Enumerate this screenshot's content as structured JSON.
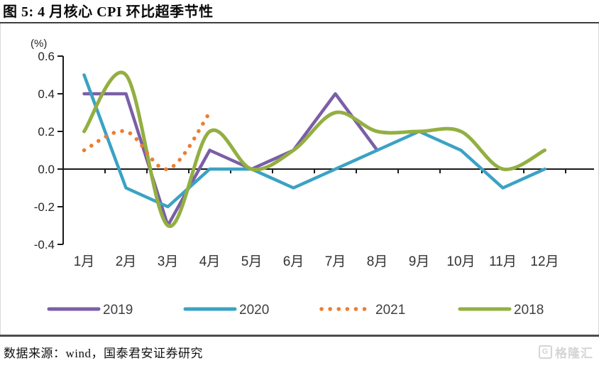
{
  "header": {
    "title": "图 5: 4 月核心 CPI 环比超季节性"
  },
  "chart_data": {
    "type": "line",
    "title": "图 5: 4 月核心 CPI 环比超季节性",
    "xlabel": "",
    "ylabel": "(%)",
    "categories": [
      "1月",
      "2月",
      "3月",
      "4月",
      "5月",
      "6月",
      "7月",
      "8月",
      "9月",
      "10月",
      "11月",
      "12月"
    ],
    "ylim": [
      -0.4,
      0.6
    ],
    "yticks": [
      {
        "label": "0.6",
        "value": 0.6
      },
      {
        "label": "0.4",
        "value": 0.4
      },
      {
        "label": "0.2",
        "value": 0.2
      },
      {
        "label": "0.0",
        "value": 0.0
      },
      {
        "label": "-0.2",
        "value": -0.2
      },
      {
        "label": "-0.4",
        "value": -0.4
      }
    ],
    "grid": false,
    "legend_position": "bottom",
    "series": [
      {
        "name": "2019",
        "color": "#7B5EA7",
        "dash": "solid",
        "smooth": false,
        "width": 4.5,
        "values": [
          0.4,
          0.4,
          -0.3,
          0.1,
          0.0,
          0.1,
          0.4,
          0.1
        ]
      },
      {
        "name": "2020",
        "color": "#3BA2C4",
        "dash": "solid",
        "smooth": false,
        "width": 4.5,
        "values": [
          0.5,
          -0.1,
          -0.2,
          0.0,
          0.0,
          -0.1,
          0.0,
          0.1,
          0.2,
          0.1,
          -0.1,
          0.0
        ]
      },
      {
        "name": "2021",
        "color": "#ED7D31",
        "dash": "dotted",
        "smooth": true,
        "width": 5.5,
        "values": [
          0.1,
          0.2,
          0.0,
          0.3
        ]
      },
      {
        "name": "2018",
        "color": "#93AF42",
        "dash": "solid",
        "smooth": true,
        "width": 5,
        "values": [
          0.2,
          0.5,
          -0.3,
          0.2,
          0.0,
          0.1,
          0.3,
          0.2,
          0.2,
          0.2,
          0.0,
          0.1
        ]
      }
    ],
    "draw_order": [
      "2019",
      "2020",
      "2018",
      "2021"
    ],
    "legend_order": [
      "2019",
      "2020",
      "2021",
      "2018"
    ],
    "axis_color": "#1a1a1a",
    "tick_label_color": "#262626",
    "category_label_color": "#333333",
    "legend_label_color": "#404040"
  },
  "footer": {
    "source": "数据来源：wind，国泰君安证券研究",
    "watermark_text": "格隆汇",
    "watermark_icon_letter": "G"
  }
}
